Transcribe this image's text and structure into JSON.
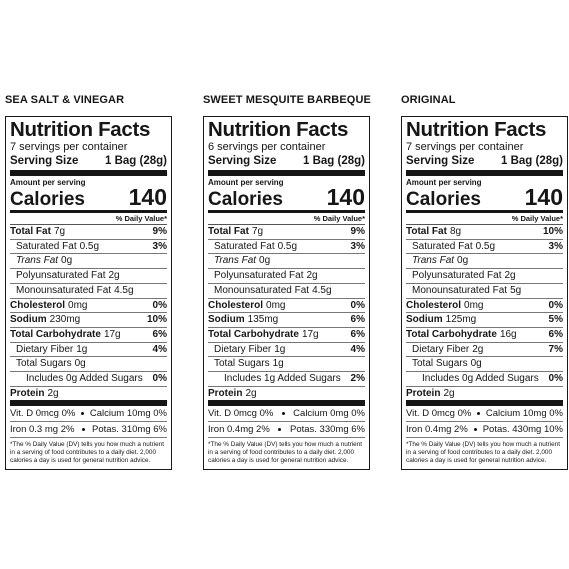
{
  "labels": [
    {
      "flavor": "SEA SALT & VINEGAR",
      "title": "Nutrition Facts",
      "servings": "7 servings per container",
      "serving_size_label": "Serving Size",
      "serving_size": "1 Bag (28g)",
      "amount_per_serving": "Amount per serving",
      "calories_label": "Calories",
      "calories": "140",
      "dv_header": "% Daily Value*",
      "rows": [
        {
          "label": "Total Fat",
          "amount": "7g",
          "dv": "9%"
        },
        {
          "label": "Saturated Fat",
          "amount": "0.5g",
          "dv": "3%"
        },
        {
          "label": "Trans Fat",
          "amount": "0g"
        },
        {
          "label": "Polyunsaturated Fat",
          "amount": "2g"
        },
        {
          "label": "Monounsaturated Fat",
          "amount": "4.5g"
        },
        {
          "label": "Cholesterol",
          "amount": "0mg",
          "dv": "0%"
        },
        {
          "label": "Sodium",
          "amount": "230mg",
          "dv": "10%"
        },
        {
          "label": "Total Carbohydrate",
          "amount": "17g",
          "dv": "6%"
        },
        {
          "label": "Dietary Fiber",
          "amount": "1g",
          "dv": "4%"
        },
        {
          "label": "Total Sugars",
          "amount": "0g"
        },
        {
          "label": "Includes 0g Added Sugars",
          "dv": "0%"
        },
        {
          "label": "Protein",
          "amount": "2g"
        }
      ],
      "vitamins": [
        [
          "Vit. D 0mcg 0%",
          "Calcium 10mg 0%"
        ],
        [
          "Iron 0.3 mg 2%",
          "Potas. 310mg 6%"
        ]
      ],
      "footnote": "*The % Daily Value (DV) tells you how much a nutrient in a serving of food contributes to a daily diet. 2,000 calories a day is used for general nutrition advice."
    },
    {
      "flavor": "SWEET MESQUITE BARBEQUE",
      "title": "Nutrition Facts",
      "servings": "6 servings per container",
      "serving_size_label": "Serving Size",
      "serving_size": "1 Bag (28g)",
      "amount_per_serving": "Amount per serving",
      "calories_label": "Calories",
      "calories": "140",
      "dv_header": "% Daily Value*",
      "rows": [
        {
          "label": "Total Fat",
          "amount": "7g",
          "dv": "9%"
        },
        {
          "label": "Saturated Fat",
          "amount": "0.5g",
          "dv": "3%"
        },
        {
          "label": "Trans Fat",
          "amount": "0g"
        },
        {
          "label": "Polyunsaturated Fat",
          "amount": "2g"
        },
        {
          "label": "Monounsaturated Fat",
          "amount": "4.5g"
        },
        {
          "label": "Cholesterol",
          "amount": "0mg",
          "dv": "0%"
        },
        {
          "label": "Sodium",
          "amount": "135mg",
          "dv": "6%"
        },
        {
          "label": "Total Carbohydrate",
          "amount": "17g",
          "dv": "6%"
        },
        {
          "label": "Dietary Fiber",
          "amount": "1g",
          "dv": "4%"
        },
        {
          "label": "Total Sugars",
          "amount": "1g"
        },
        {
          "label": "Includes 1g Added Sugars",
          "dv": "2%"
        },
        {
          "label": "Protein",
          "amount": "2g"
        }
      ],
      "vitamins": [
        [
          "Vit. D 0mcg 0%",
          "Calcium 0mg 0%"
        ],
        [
          "Iron 0.4mg 2%",
          "Potas. 330mg 6%"
        ]
      ],
      "footnote": "*The % Daily Value (DV) tells you how much a nutrient in a serving of food contributes to a daily diet. 2,000 calories a day is used for general nutrition advice."
    },
    {
      "flavor": "ORIGINAL",
      "title": "Nutrition Facts",
      "servings": "7 servings per container",
      "serving_size_label": "Serving Size",
      "serving_size": "1 Bag (28g)",
      "amount_per_serving": "Amount per serving",
      "calories_label": "Calories",
      "calories": "140",
      "dv_header": "% Daily Value*",
      "rows": [
        {
          "label": "Total Fat",
          "amount": "8g",
          "dv": "10%"
        },
        {
          "label": "Saturated Fat",
          "amount": "0.5g",
          "dv": "3%"
        },
        {
          "label": "Trans Fat",
          "amount": "0g"
        },
        {
          "label": "Polyunsaturated Fat",
          "amount": "2g"
        },
        {
          "label": "Monounsaturated Fat",
          "amount": "5g"
        },
        {
          "label": "Cholesterol",
          "amount": "0mg",
          "dv": "0%"
        },
        {
          "label": "Sodium",
          "amount": "125mg",
          "dv": "5%"
        },
        {
          "label": "Total Carbohydrate",
          "amount": "16g",
          "dv": "6%"
        },
        {
          "label": "Dietary Fiber",
          "amount": "2g",
          "dv": "7%"
        },
        {
          "label": "Total Sugars",
          "amount": "0g"
        },
        {
          "label": "Includes 0g Added Sugars",
          "dv": "0%"
        },
        {
          "label": "Protein",
          "amount": "2g"
        }
      ],
      "vitamins": [
        [
          "Vit. D 0mcg 0%",
          "Calcium 10mg 0%"
        ],
        [
          "Iron 0.4mg 2%",
          "Potas. 430mg 10%"
        ]
      ],
      "footnote": "*The % Daily Value (DV) tells you how much a nutrient in a serving of food contributes to a daily diet. 2,000 calories a day is used for general nutrition advice."
    }
  ]
}
